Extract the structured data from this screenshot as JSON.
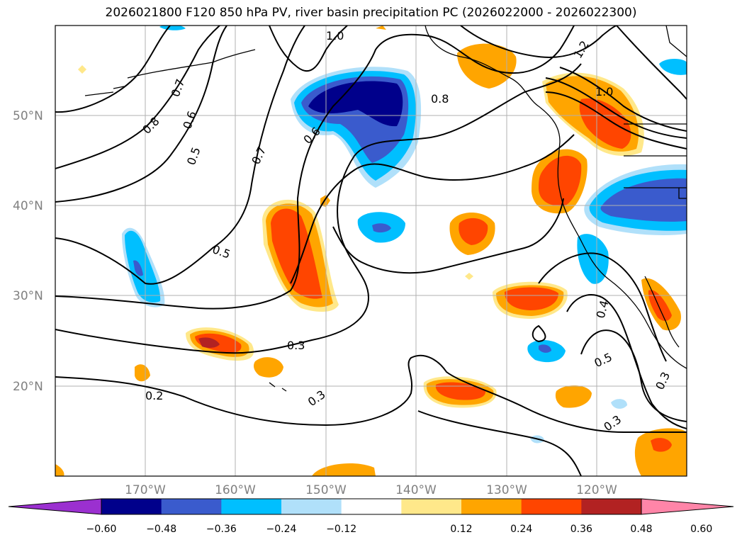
{
  "title": "2026021800 F120 850 hPa PV, river basin precipitation PC (2026022000 - 2026022300)",
  "lat_labels": [
    "50°N",
    "40°N",
    "30°N",
    "20°N"
  ],
  "lon_labels": [
    "170°W",
    "160°W",
    "150°W",
    "140°W",
    "130°W",
    "120°W"
  ],
  "contour_labels": [
    "1.0",
    "1.2",
    "1.0",
    "0.8",
    "0.8",
    "0.7",
    "0.6",
    "0.6",
    "0.5",
    "0.7",
    "0.5",
    "0.3",
    "0.2",
    "0.3",
    "0.4",
    "0.5",
    "0.3",
    "0.3"
  ],
  "colorbar": {
    "ticks": [
      "−0.60",
      "−0.48",
      "−0.36",
      "−0.24",
      "−0.12",
      "0.12",
      "0.24",
      "0.36",
      "0.48",
      "0.60"
    ],
    "colors": [
      "#9b30d0",
      "#00008b",
      "#3a5bcd",
      "#00bfff",
      "#b0e0fa",
      "#ffffff",
      "#ffe88a",
      "#ffa500",
      "#ff4500",
      "#b22222",
      "#ff85a8"
    ]
  },
  "layers": {
    "contours": "850 hPa PV",
    "shading": "river basin precipitation PC"
  }
}
